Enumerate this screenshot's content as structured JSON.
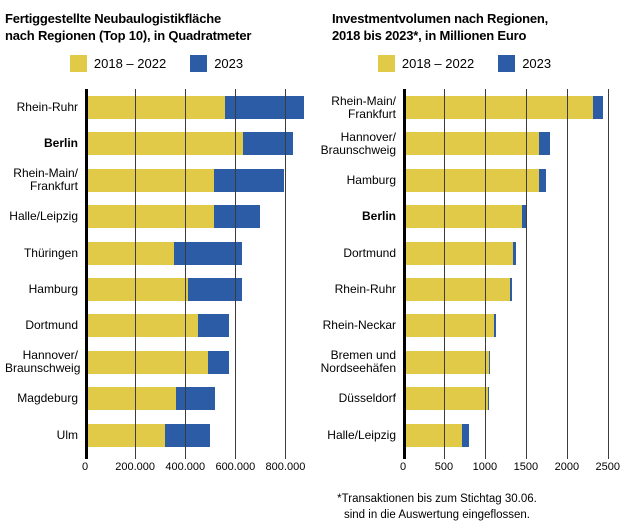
{
  "colors": {
    "bar_2018_2022": "#e2ca49",
    "bar_2023": "#2d5ca6",
    "gridline": "#3c3c3c",
    "axis": "#000000",
    "background": "#ffffff",
    "text": "#000000"
  },
  "footnote": {
    "line1": "*Transaktionen bis zum Stichtag 30.06.",
    "line2": "sind in die Auswertung eingeflossen."
  },
  "chart_data": [
    {
      "type": "bar",
      "orientation": "horizontal",
      "stacked": true,
      "grid": true,
      "legend_position": "top",
      "title_lines": [
        "Fertiggestellte Neubaulogistikfläche",
        "nach Regionen (Top 10), in Quadratmeter"
      ],
      "legend": [
        {
          "name": "2018 – 2022",
          "color": "#e2ca49"
        },
        {
          "name": "2023",
          "color": "#2d5ca6"
        }
      ],
      "xlim": [
        0,
        890000
      ],
      "xticks": [
        {
          "v": 0,
          "label": "0"
        },
        {
          "v": 200000,
          "label": "200.000"
        },
        {
          "v": 400000,
          "label": "400.000"
        },
        {
          "v": 600000,
          "label": "600.000"
        },
        {
          "v": 800000,
          "label": "800.000"
        }
      ],
      "categories": [
        {
          "lines": [
            "Rhein-Ruhr"
          ],
          "bold": false
        },
        {
          "lines": [
            "Berlin"
          ],
          "bold": true
        },
        {
          "lines": [
            "Rhein-Main/",
            "Frankfurt"
          ],
          "bold": false
        },
        {
          "lines": [
            "Halle/Leipzig"
          ],
          "bold": false
        },
        {
          "lines": [
            "Thüringen"
          ],
          "bold": false
        },
        {
          "lines": [
            "Hamburg"
          ],
          "bold": false
        },
        {
          "lines": [
            "Dortmund"
          ],
          "bold": false
        },
        {
          "lines": [
            "Hannover/",
            "Braunschweig"
          ],
          "bold": false
        },
        {
          "lines": [
            "Magdeburg"
          ],
          "bold": false
        },
        {
          "lines": [
            "Ulm"
          ],
          "bold": false
        }
      ],
      "series": [
        {
          "name": "2018 – 2022",
          "values": [
            560000,
            630000,
            515000,
            515000,
            355000,
            410000,
            450000,
            490000,
            365000,
            320000
          ]
        },
        {
          "name": "2023",
          "values": [
            315000,
            200000,
            280000,
            185000,
            270000,
            215000,
            125000,
            85000,
            155000,
            180000
          ]
        }
      ]
    },
    {
      "type": "bar",
      "orientation": "horizontal",
      "stacked": true,
      "grid": true,
      "legend_position": "top",
      "title_lines": [
        "Investmentvolumen nach Regionen,",
        "2018 bis 2023*, in Millionen Euro"
      ],
      "legend": [
        {
          "name": "2018 – 2022",
          "color": "#e2ca49"
        },
        {
          "name": "2023",
          "color": "#2d5ca6"
        }
      ],
      "xlim": [
        0,
        2600
      ],
      "xticks": [
        {
          "v": 0,
          "label": "0"
        },
        {
          "v": 500,
          "label": "500"
        },
        {
          "v": 1000,
          "label": "1000"
        },
        {
          "v": 1500,
          "label": "1500"
        },
        {
          "v": 2000,
          "label": "2000"
        },
        {
          "v": 2500,
          "label": "2500"
        }
      ],
      "categories": [
        {
          "lines": [
            "Rhein-Main/",
            "Frankfurt"
          ],
          "bold": false
        },
        {
          "lines": [
            "Hannover/",
            "Braunschweig"
          ],
          "bold": false
        },
        {
          "lines": [
            "Hamburg"
          ],
          "bold": false
        },
        {
          "lines": [
            "Berlin"
          ],
          "bold": true
        },
        {
          "lines": [
            "Dortmund"
          ],
          "bold": false
        },
        {
          "lines": [
            "Rhein-Ruhr"
          ],
          "bold": false
        },
        {
          "lines": [
            "Rhein-Neckar"
          ],
          "bold": false
        },
        {
          "lines": [
            "Bremen und",
            "Nordseehäfen"
          ],
          "bold": false
        },
        {
          "lines": [
            "Düsseldorf"
          ],
          "bold": false
        },
        {
          "lines": [
            "Halle/Leipzig"
          ],
          "bold": false
        }
      ],
      "series": [
        {
          "name": "2018 – 2022",
          "values": [
            2320,
            1655,
            1660,
            1455,
            1340,
            1300,
            1110,
            1050,
            1040,
            720
          ]
        },
        {
          "name": "2023",
          "values": [
            120,
            140,
            90,
            45,
            45,
            30,
            25,
            15,
            10,
            80
          ]
        }
      ]
    }
  ]
}
